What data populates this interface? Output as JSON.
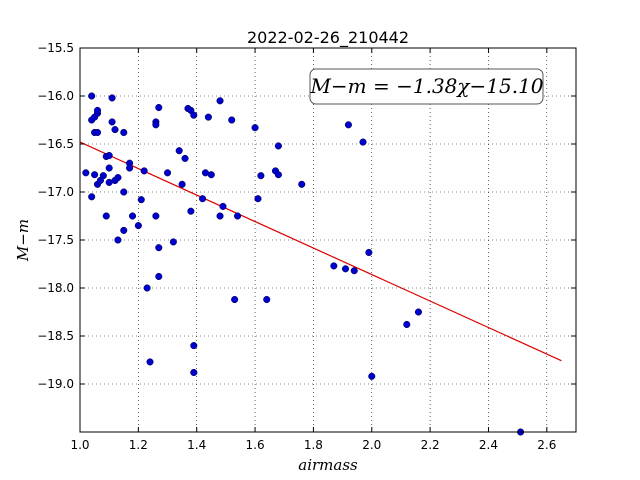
{
  "chart_data": {
    "type": "scatter",
    "title": "2022-02-26_210442",
    "xlabel": "airmass",
    "ylabel": "M−m",
    "xlim": [
      1.0,
      2.7
    ],
    "ylim": [
      -19.5,
      -15.5
    ],
    "y_inverted": true,
    "grid": true,
    "x_ticks": [
      1.0,
      1.2,
      1.4,
      1.6,
      1.8,
      2.0,
      2.2,
      2.4,
      2.6
    ],
    "x_tick_labels": [
      "1.0",
      "1.2",
      "1.4",
      "1.6",
      "1.8",
      "2.0",
      "2.2",
      "2.4",
      "2.6"
    ],
    "y_ticks": [
      -15.5,
      -16.0,
      -16.5,
      -17.0,
      -17.5,
      -18.0,
      -18.5,
      -19.0
    ],
    "y_tick_labels": [
      "−15.5",
      "−16.0",
      "−16.5",
      "−17.0",
      "−17.5",
      "−18.0",
      "−18.5",
      "−19.0"
    ],
    "annotation": "M−m = −1.38χ−15.10",
    "annotation_position": "top-right",
    "point_color": "#0000cc",
    "fit_color": "#dd0000",
    "fit": {
      "slope": -1.38,
      "intercept": -15.1,
      "x_range": [
        1.0,
        2.65
      ]
    },
    "points": [
      [
        1.02,
        -16.8
      ],
      [
        1.04,
        -16.0
      ],
      [
        1.04,
        -16.25
      ],
      [
        1.05,
        -16.22
      ],
      [
        1.06,
        -16.18
      ],
      [
        1.06,
        -16.15
      ],
      [
        1.05,
        -16.38
      ],
      [
        1.06,
        -16.38
      ],
      [
        1.04,
        -17.05
      ],
      [
        1.05,
        -16.82
      ],
      [
        1.06,
        -16.92
      ],
      [
        1.07,
        -16.88
      ],
      [
        1.08,
        -16.83
      ],
      [
        1.09,
        -16.63
      ],
      [
        1.1,
        -16.62
      ],
      [
        1.1,
        -16.75
      ],
      [
        1.1,
        -16.9
      ],
      [
        1.12,
        -16.88
      ],
      [
        1.13,
        -16.85
      ],
      [
        1.09,
        -17.25
      ],
      [
        1.11,
        -16.02
      ],
      [
        1.11,
        -16.27
      ],
      [
        1.12,
        -16.35
      ],
      [
        1.15,
        -16.38
      ],
      [
        1.17,
        -16.7
      ],
      [
        1.17,
        -16.75
      ],
      [
        1.15,
        -17.0
      ],
      [
        1.18,
        -17.25
      ],
      [
        1.15,
        -17.4
      ],
      [
        1.13,
        -17.5
      ],
      [
        1.2,
        -17.35
      ],
      [
        1.21,
        -17.08
      ],
      [
        1.22,
        -16.78
      ],
      [
        1.23,
        -18.0
      ],
      [
        1.24,
        -18.77
      ],
      [
        1.26,
        -16.27
      ],
      [
        1.26,
        -16.3
      ],
      [
        1.27,
        -16.12
      ],
      [
        1.26,
        -17.25
      ],
      [
        1.27,
        -17.58
      ],
      [
        1.27,
        -17.88
      ],
      [
        1.3,
        -16.8
      ],
      [
        1.32,
        -17.52
      ],
      [
        1.34,
        -16.57
      ],
      [
        1.35,
        -16.92
      ],
      [
        1.36,
        -16.65
      ],
      [
        1.37,
        -16.13
      ],
      [
        1.38,
        -16.15
      ],
      [
        1.39,
        -16.2
      ],
      [
        1.38,
        -17.2
      ],
      [
        1.39,
        -18.6
      ],
      [
        1.39,
        -18.88
      ],
      [
        1.42,
        -17.07
      ],
      [
        1.43,
        -16.8
      ],
      [
        1.44,
        -16.22
      ],
      [
        1.45,
        -16.82
      ],
      [
        1.48,
        -16.05
      ],
      [
        1.49,
        -17.15
      ],
      [
        1.48,
        -17.25
      ],
      [
        1.52,
        -16.25
      ],
      [
        1.53,
        -18.12
      ],
      [
        1.54,
        -17.25
      ],
      [
        1.6,
        -16.33
      ],
      [
        1.61,
        -17.07
      ],
      [
        1.62,
        -16.83
      ],
      [
        1.64,
        -18.12
      ],
      [
        1.67,
        -16.78
      ],
      [
        1.68,
        -16.52
      ],
      [
        1.68,
        -16.82
      ],
      [
        1.76,
        -16.92
      ],
      [
        1.87,
        -17.77
      ],
      [
        1.91,
        -17.8
      ],
      [
        1.92,
        -16.3
      ],
      [
        1.94,
        -17.82
      ],
      [
        1.97,
        -16.48
      ],
      [
        1.99,
        -17.63
      ],
      [
        2.0,
        -18.92
      ],
      [
        2.12,
        -18.38
      ],
      [
        2.16,
        -18.25
      ],
      [
        2.51,
        -19.5
      ]
    ]
  }
}
